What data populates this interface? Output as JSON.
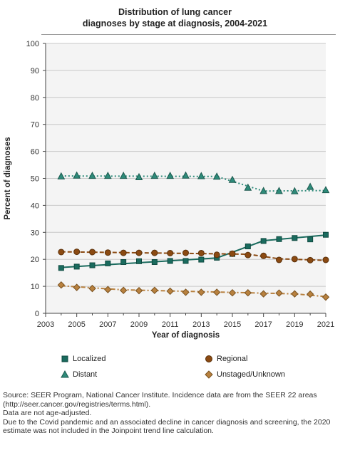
{
  "title_lines": [
    "Distribution of lung cancer",
    "diagnoses by stage at diagnosis, 2004-2021"
  ],
  "footnotes": [
    "Source: SEER Program, National Cancer Institute. Incidence data are from the SEER 22 areas (http://seer.cancer.gov/registries/terms.html).",
    "Data are not age-adjusted.",
    "Due to the Covid pandemic and an associated decline in cancer diagnosis and screening, the 2020 estimate was not included in the Joinpoint trend line calculation."
  ],
  "legend": {
    "localized": "Localized",
    "regional": "Regional",
    "distant": "Distant",
    "unstaged": "Unstaged/Unknown"
  },
  "chart_data": {
    "type": "line",
    "title": "Distribution of lung cancer diagnoses by stage at diagnosis, 2004-2021",
    "xlabel": "Year of diagnosis",
    "ylabel": "Percent of diagnoses",
    "xlim": [
      2003,
      2021
    ],
    "ylim": [
      0,
      100
    ],
    "xticks": [
      2003,
      2005,
      2007,
      2009,
      2011,
      2013,
      2015,
      2017,
      2019,
      2021
    ],
    "yticks": [
      0,
      10,
      20,
      30,
      40,
      50,
      60,
      70,
      80,
      90,
      100
    ],
    "grid": "horizontal",
    "legend_position": "bottom",
    "x": [
      2004,
      2005,
      2006,
      2007,
      2008,
      2009,
      2010,
      2011,
      2012,
      2013,
      2014,
      2015,
      2016,
      2017,
      2018,
      2019,
      2020,
      2021
    ],
    "series": [
      {
        "name": "Localized",
        "marker": "square",
        "color": "#1a6b5e",
        "line_style": "solid",
        "values": [
          16.8,
          17.3,
          17.8,
          18.5,
          19.0,
          19.3,
          19.0,
          19.4,
          19.4,
          19.9,
          20.6,
          22.0,
          24.8,
          26.8,
          27.5,
          27.9,
          27.4,
          29.1
        ],
        "trend": [
          [
            2004,
            17.0
          ],
          [
            2014,
            20.5
          ],
          [
            2017,
            26.9
          ],
          [
            2021,
            29.0
          ]
        ]
      },
      {
        "name": "Regional",
        "marker": "circle",
        "color": "#8b4a12",
        "line_style": "dashed",
        "values": [
          22.7,
          22.8,
          22.7,
          22.5,
          22.4,
          22.4,
          22.4,
          22.3,
          22.4,
          22.3,
          21.7,
          22.1,
          21.6,
          21.3,
          19.8,
          20.1,
          19.7,
          19.8
        ],
        "trend": [
          [
            2004,
            22.8
          ],
          [
            2016,
            21.9
          ],
          [
            2018,
            20.2
          ],
          [
            2021,
            19.6
          ]
        ]
      },
      {
        "name": "Distant",
        "marker": "triangle",
        "color": "#2e8b7a",
        "line_style": "dotted",
        "values": [
          50.7,
          51.0,
          50.9,
          50.9,
          50.9,
          50.4,
          50.9,
          50.9,
          51.0,
          50.8,
          50.6,
          49.4,
          46.5,
          45.3,
          45.3,
          45.2,
          46.8,
          45.6
        ],
        "trend": [
          [
            2004,
            50.9
          ],
          [
            2014,
            50.7
          ],
          [
            2017,
            45.3
          ],
          [
            2021,
            45.5
          ]
        ]
      },
      {
        "name": "Unstaged/Unknown",
        "marker": "diamond",
        "color": "#b8813f",
        "line_style": "dashdot",
        "values": [
          10.5,
          9.6,
          9.2,
          8.8,
          8.5,
          8.4,
          8.5,
          8.2,
          7.8,
          7.8,
          7.8,
          7.6,
          7.6,
          7.2,
          7.5,
          7.2,
          7.1,
          6.0
        ],
        "trend": [
          [
            2004,
            10.2
          ],
          [
            2008,
            8.7
          ],
          [
            2019,
            7.2
          ],
          [
            2021,
            6.2
          ]
        ]
      }
    ]
  }
}
